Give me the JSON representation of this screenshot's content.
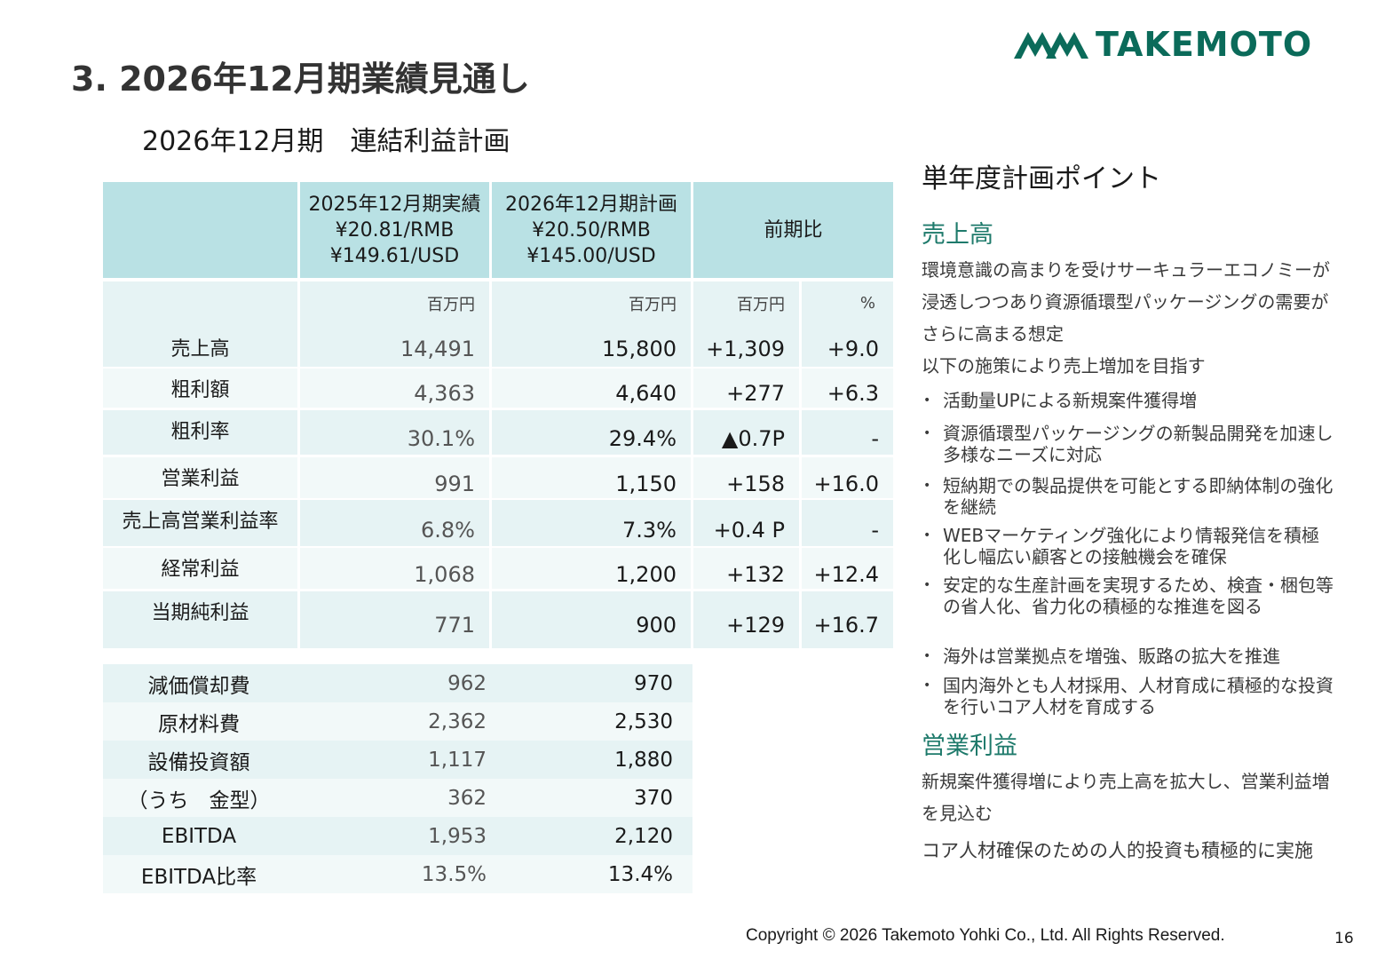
{
  "header": {
    "title": "3. 2026年12月期業績見通し",
    "subtitle": "2026年12月期　連結利益計画",
    "logo_text": "TAKEMOTO",
    "logo_color": "#0b6b5a"
  },
  "table": {
    "col_headers": [
      [
        "2025年12月期実績",
        "¥20.81/RMB",
        "¥149.61/USD"
      ],
      [
        "2026年12月期計画",
        "¥20.50/RMB",
        "¥145.00/USD"
      ],
      [
        "前期比"
      ]
    ],
    "units": [
      "百万円",
      "百万円",
      "百万円",
      "%"
    ],
    "rows": [
      {
        "label": "売上高",
        "actual": "14,491",
        "plan": "15,800",
        "diff": "+1,309",
        "pct": "+9.0"
      },
      {
        "label": "粗利額",
        "actual": "4,363",
        "plan": "4,640",
        "diff": "+277",
        "pct": "+6.3"
      },
      {
        "label": "粗利率",
        "actual": "30.1%",
        "plan": "29.4%",
        "diff": "▲0.7P",
        "pct": "-"
      },
      {
        "label": "営業利益",
        "actual": "991",
        "plan": "1,150",
        "diff": "+158",
        "pct": "+16.0"
      },
      {
        "label": "売上高営業利益率",
        "actual": "6.8%",
        "plan": "7.3%",
        "diff": "+0.4 P",
        "pct": "-"
      },
      {
        "label": "経常利益",
        "actual": "1,068",
        "plan": "1,200",
        "diff": "+132",
        "pct": "+12.4"
      },
      {
        "label": "当期純利益",
        "actual": "771",
        "plan": "900",
        "diff": "+129",
        "pct": "+16.7"
      }
    ]
  },
  "sub_table": {
    "rows": [
      {
        "label": "減価償却費",
        "actual": "962",
        "plan": "970"
      },
      {
        "label": "原材料費",
        "actual": "2,362",
        "plan": "2,530"
      },
      {
        "label": "設備投資額",
        "actual": "1,117",
        "plan": "1,880"
      },
      {
        "label": "（うち　金型）",
        "actual": "362",
        "plan": "370"
      },
      {
        "label": "EBITDA",
        "actual": "1,953",
        "plan": "2,120"
      },
      {
        "label": "EBITDA比率",
        "actual": "13.5%",
        "plan": "13.4%"
      }
    ]
  },
  "points": {
    "title": "単年度計画ポイント",
    "sales_head": "売上高",
    "sales_paras": [
      "環境意識の高まりを受けサーキュラーエコノミーが浸透しつつあり資源循環型パッケージングの需要がさらに高まる想定",
      "以下の施策により売上増加を目指す"
    ],
    "bullets": [
      "活動量UPによる新規案件獲得増",
      "資源循環型パッケージングの新製品開発を加速し多様なニーズに対応",
      "短納期での製品提供を可能とする即納体制の強化を継続",
      "WEBマーケティング強化により情報発信を積極化し幅広い顧客との接触機会を確保",
      "安定的な生産計画を実現するため、検査・梱包等の省人化、省力化の積極的な推進を図る",
      "海外は営業拠点を増強、販路の拡大を推進",
      "国内海外とも人材採用、人材育成に積極的な投資を行いコア人材を育成する"
    ],
    "op_head": "営業利益",
    "op_paras": [
      "新規案件獲得増により売上高を拡大し、営業利益増を見込む",
      "コア人材確保のための人的投資も積極的に実施"
    ]
  },
  "footer": {
    "copyright": "Copyright © 2026 Takemoto Yohki Co., Ltd. All Rights Reserved.",
    "page": "16"
  }
}
